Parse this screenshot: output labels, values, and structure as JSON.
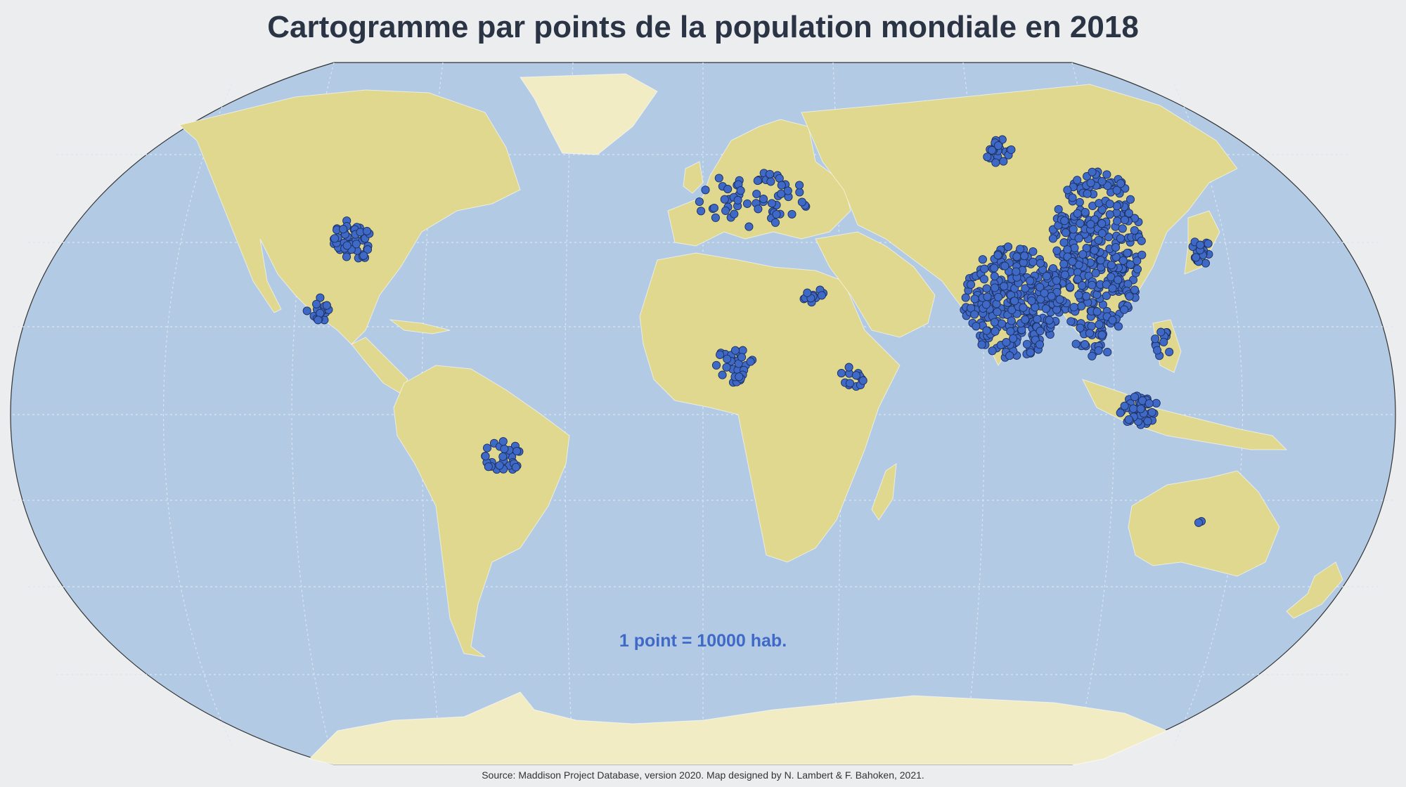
{
  "title": "Cartogramme par points de la population mondiale en 2018",
  "legend": {
    "text": "1 point = 10000 hab."
  },
  "source": "Source: Maddison Project Database, version 2020. Map designed by N. Lambert & F. Bahoken, 2021.",
  "colors": {
    "background": "#ebedef",
    "ocean": "#b3cae5",
    "land": "#e0d88e",
    "antarctica": "#f2ecc4",
    "dot": "#3f69c6",
    "dot_stroke": "#1d2f5e",
    "graticule": "#dbe6f2",
    "legend": "#3f69c6"
  },
  "map": {
    "projection": "Winkel Tripel",
    "dot_value": 10000,
    "dot_clusters": [
      {
        "region": "China",
        "count": 360
      },
      {
        "region": "India",
        "count": 300
      },
      {
        "region": "United States",
        "count": 50
      },
      {
        "region": "Indonesia",
        "count": 40
      },
      {
        "region": "Brazil",
        "count": 30
      },
      {
        "region": "Nigeria",
        "count": 30
      },
      {
        "region": "Japan",
        "count": 18
      },
      {
        "region": "Vietnam",
        "count": 14
      },
      {
        "region": "Philippines",
        "count": 12
      },
      {
        "region": "Mexico",
        "count": 16
      },
      {
        "region": "Ethiopia",
        "count": 14
      },
      {
        "region": "Egypt",
        "count": 12
      },
      {
        "region": "Russia",
        "count": 22
      },
      {
        "region": "Europe",
        "count": 60
      },
      {
        "region": "Australia",
        "count": 2
      }
    ]
  }
}
